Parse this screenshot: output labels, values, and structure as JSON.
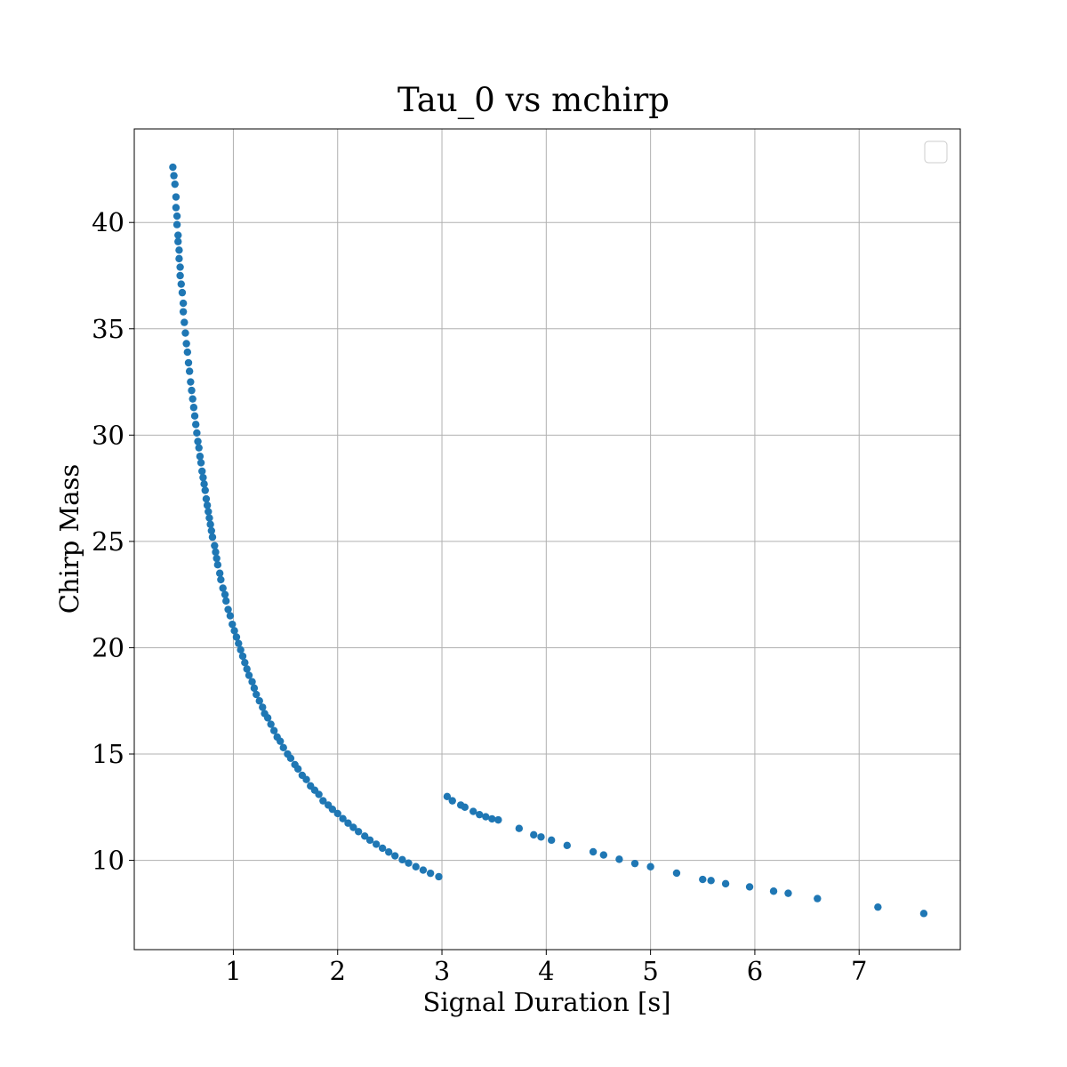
{
  "chart_data": {
    "type": "scatter",
    "title": "Tau_0 vs mchirp",
    "xlabel": "Signal Duration [s]",
    "ylabel": "Chirp Mass",
    "xlim": [
      0.05,
      7.97
    ],
    "ylim": [
      5.8,
      44.4
    ],
    "xticks": [
      "1",
      "2",
      "3",
      "4",
      "5",
      "6",
      "7"
    ],
    "yticks": [
      "10",
      "15",
      "20",
      "25",
      "30",
      "35",
      "40"
    ],
    "grid": true,
    "legend": {
      "placement": "top-right",
      "entries": []
    },
    "marker_color": "#1f77b4",
    "series": [
      {
        "x": [
          0.42,
          0.43,
          0.44,
          0.45,
          0.45,
          0.46,
          0.46,
          0.47,
          0.47,
          0.48,
          0.48,
          0.49,
          0.49,
          0.5,
          0.51,
          0.52,
          0.52,
          0.53,
          0.54,
          0.55,
          0.56,
          0.57,
          0.58,
          0.59,
          0.6,
          0.61,
          0.62,
          0.63,
          0.64,
          0.65,
          0.66,
          0.67,
          0.68,
          0.69,
          0.7,
          0.71,
          0.72,
          0.73,
          0.74,
          0.75,
          0.76,
          0.77,
          0.78,
          0.79,
          0.8,
          0.82,
          0.83,
          0.84,
          0.85,
          0.87,
          0.88,
          0.9,
          0.92,
          0.93,
          0.95,
          0.97,
          0.99,
          1.01,
          1.03,
          1.05,
          1.07,
          1.09,
          1.11,
          1.13,
          1.15,
          1.18,
          1.2,
          1.22,
          1.25,
          1.28,
          1.3,
          1.33,
          1.36,
          1.39,
          1.42,
          1.45,
          1.48,
          1.52,
          1.55,
          1.59,
          1.62,
          1.66,
          1.7,
          1.74,
          1.78,
          1.82,
          1.86,
          1.91,
          1.95,
          2.0,
          2.05,
          2.1,
          2.15,
          2.2,
          2.26,
          2.31,
          2.37,
          2.43,
          2.49,
          2.55,
          2.62,
          2.68,
          2.75,
          2.82,
          2.89,
          2.97,
          3.05,
          3.1,
          3.18,
          3.22,
          3.3,
          3.36,
          3.42,
          3.48,
          3.54,
          3.74,
          3.88,
          3.95,
          4.05,
          4.2,
          4.45,
          4.55,
          4.7,
          4.85,
          5.0,
          5.25,
          5.5,
          5.58,
          5.72,
          5.95,
          6.18,
          6.32,
          6.6,
          7.18,
          7.62
        ],
        "y": [
          42.6,
          42.2,
          41.8,
          41.2,
          40.7,
          40.3,
          39.9,
          39.4,
          39.1,
          38.7,
          38.3,
          37.9,
          37.5,
          37.1,
          36.7,
          36.2,
          35.8,
          35.3,
          34.8,
          34.3,
          33.9,
          33.4,
          33.0,
          32.5,
          32.1,
          31.7,
          31.3,
          30.9,
          30.5,
          30.1,
          29.7,
          29.4,
          29.0,
          28.7,
          28.3,
          28.0,
          27.7,
          27.4,
          27.0,
          26.7,
          26.4,
          26.1,
          25.8,
          25.5,
          25.2,
          24.8,
          24.5,
          24.2,
          23.9,
          23.5,
          23.2,
          22.8,
          22.5,
          22.2,
          21.8,
          21.5,
          21.1,
          20.8,
          20.5,
          20.2,
          19.9,
          19.6,
          19.3,
          19.0,
          18.7,
          18.4,
          18.1,
          17.8,
          17.5,
          17.2,
          16.9,
          16.7,
          16.4,
          16.1,
          15.8,
          15.6,
          15.3,
          15.0,
          14.8,
          14.5,
          14.3,
          14.0,
          13.8,
          13.5,
          13.3,
          13.1,
          12.8,
          12.6,
          12.4,
          12.2,
          11.96,
          11.75,
          11.55,
          11.35,
          11.14,
          10.95,
          10.76,
          10.57,
          10.39,
          10.21,
          10.03,
          9.87,
          9.7,
          9.54,
          9.39,
          9.23,
          13.0,
          12.8,
          12.6,
          12.5,
          12.3,
          12.15,
          12.05,
          11.95,
          11.9,
          11.5,
          11.2,
          11.1,
          10.95,
          10.7,
          10.4,
          10.25,
          10.05,
          9.85,
          9.7,
          9.4,
          9.1,
          9.05,
          8.9,
          8.75,
          8.55,
          8.45,
          8.2,
          7.8,
          7.5
        ]
      }
    ]
  }
}
